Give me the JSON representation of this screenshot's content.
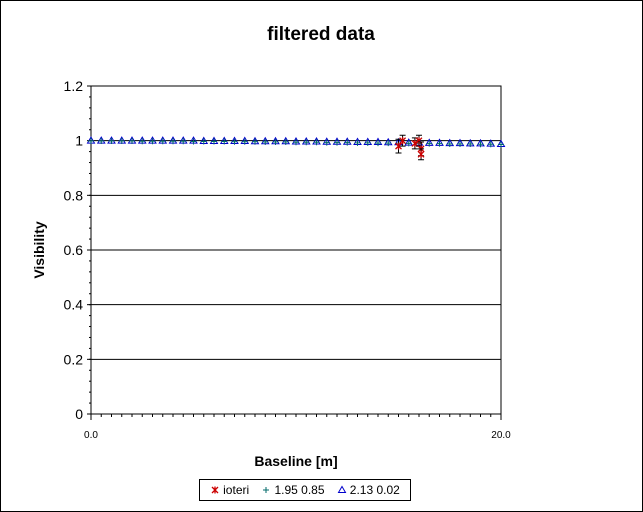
{
  "chart_data": {
    "type": "scatter",
    "title": "filtered data",
    "xlabel": "Baseline [m]",
    "ylabel": "Visibility",
    "xlim": [
      0,
      20
    ],
    "ylim": [
      0,
      1.2
    ],
    "x_tick_labels": [
      "0.0",
      "20.0"
    ],
    "y_tick_labels": [
      "0",
      "0.2",
      "0.4",
      "0.6",
      "0.8",
      "1",
      "1.2"
    ],
    "grid": "horizontal",
    "legend": "bottom",
    "series": [
      {
        "name": "ioteri",
        "marker": "asterisk",
        "color": "#cc0000",
        "error_bars": true,
        "points": [
          {
            "x": 15.0,
            "y": 0.98,
            "err": 0.025
          },
          {
            "x": 15.2,
            "y": 1.0,
            "err": 0.02
          },
          {
            "x": 15.8,
            "y": 0.99,
            "err": 0.02
          },
          {
            "x": 16.0,
            "y": 1.0,
            "err": 0.02
          },
          {
            "x": 16.1,
            "y": 0.97,
            "err": 0.025
          },
          {
            "x": 16.1,
            "y": 0.95,
            "err": 0.02
          }
        ]
      },
      {
        "name": "1.95 0.85",
        "marker": "plus",
        "color": "#006a6a",
        "points": [
          {
            "x": 0.0,
            "y": 0.999
          },
          {
            "x": 0.5,
            "y": 0.999
          },
          {
            "x": 1.0,
            "y": 0.999
          },
          {
            "x": 1.5,
            "y": 0.999
          },
          {
            "x": 2.0,
            "y": 0.999
          },
          {
            "x": 2.5,
            "y": 0.998
          },
          {
            "x": 3.0,
            "y": 0.998
          },
          {
            "x": 3.5,
            "y": 0.998
          },
          {
            "x": 4.0,
            "y": 0.998
          },
          {
            "x": 4.5,
            "y": 0.998
          },
          {
            "x": 5.0,
            "y": 0.997
          },
          {
            "x": 5.5,
            "y": 0.997
          },
          {
            "x": 6.0,
            "y": 0.997
          },
          {
            "x": 6.5,
            "y": 0.997
          },
          {
            "x": 7.0,
            "y": 0.996
          },
          {
            "x": 7.5,
            "y": 0.996
          },
          {
            "x": 8.0,
            "y": 0.996
          },
          {
            "x": 8.5,
            "y": 0.995
          },
          {
            "x": 9.0,
            "y": 0.995
          },
          {
            "x": 9.5,
            "y": 0.995
          },
          {
            "x": 10.0,
            "y": 0.994
          },
          {
            "x": 10.5,
            "y": 0.994
          },
          {
            "x": 11.0,
            "y": 0.994
          },
          {
            "x": 11.5,
            "y": 0.993
          },
          {
            "x": 12.0,
            "y": 0.993
          },
          {
            "x": 12.5,
            "y": 0.993
          },
          {
            "x": 13.0,
            "y": 0.992
          },
          {
            "x": 13.5,
            "y": 0.992
          },
          {
            "x": 14.0,
            "y": 0.991
          },
          {
            "x": 14.5,
            "y": 0.991
          },
          {
            "x": 15.0,
            "y": 0.991
          },
          {
            "x": 15.5,
            "y": 0.99
          },
          {
            "x": 16.0,
            "y": 0.99
          },
          {
            "x": 16.5,
            "y": 0.989
          },
          {
            "x": 17.0,
            "y": 0.989
          },
          {
            "x": 17.5,
            "y": 0.988
          },
          {
            "x": 18.0,
            "y": 0.988
          },
          {
            "x": 18.5,
            "y": 0.988
          },
          {
            "x": 19.0,
            "y": 0.987
          },
          {
            "x": 19.5,
            "y": 0.987
          },
          {
            "x": 20.0,
            "y": 0.986
          }
        ]
      },
      {
        "name": "2.13 0.02",
        "marker": "triangle",
        "color": "#0000cc",
        "points": [
          {
            "x": 0.0,
            "y": 1.0
          },
          {
            "x": 0.5,
            "y": 1.0
          },
          {
            "x": 1.0,
            "y": 1.0
          },
          {
            "x": 1.5,
            "y": 1.0
          },
          {
            "x": 2.0,
            "y": 1.0
          },
          {
            "x": 2.5,
            "y": 1.0
          },
          {
            "x": 3.0,
            "y": 1.0
          },
          {
            "x": 3.5,
            "y": 1.0
          },
          {
            "x": 4.0,
            "y": 1.0
          },
          {
            "x": 4.5,
            "y": 1.0
          },
          {
            "x": 5.0,
            "y": 1.0
          },
          {
            "x": 5.5,
            "y": 0.999
          },
          {
            "x": 6.0,
            "y": 0.999
          },
          {
            "x": 6.5,
            "y": 0.999
          },
          {
            "x": 7.0,
            "y": 0.999
          },
          {
            "x": 7.5,
            "y": 0.999
          },
          {
            "x": 8.0,
            "y": 0.998
          },
          {
            "x": 8.5,
            "y": 0.998
          },
          {
            "x": 9.0,
            "y": 0.998
          },
          {
            "x": 9.5,
            "y": 0.998
          },
          {
            "x": 10.0,
            "y": 0.997
          },
          {
            "x": 10.5,
            "y": 0.997
          },
          {
            "x": 11.0,
            "y": 0.997
          },
          {
            "x": 11.5,
            "y": 0.996
          },
          {
            "x": 12.0,
            "y": 0.996
          },
          {
            "x": 12.5,
            "y": 0.996
          },
          {
            "x": 13.0,
            "y": 0.995
          },
          {
            "x": 13.5,
            "y": 0.995
          },
          {
            "x": 14.0,
            "y": 0.995
          },
          {
            "x": 14.5,
            "y": 0.994
          },
          {
            "x": 15.0,
            "y": 0.994
          },
          {
            "x": 15.5,
            "y": 0.993
          },
          {
            "x": 16.0,
            "y": 0.993
          },
          {
            "x": 16.5,
            "y": 0.992
          },
          {
            "x": 17.0,
            "y": 0.992
          },
          {
            "x": 17.5,
            "y": 0.991
          },
          {
            "x": 18.0,
            "y": 0.991
          },
          {
            "x": 18.5,
            "y": 0.99
          },
          {
            "x": 19.0,
            "y": 0.99
          },
          {
            "x": 19.5,
            "y": 0.989
          },
          {
            "x": 20.0,
            "y": 0.988
          }
        ]
      }
    ]
  }
}
